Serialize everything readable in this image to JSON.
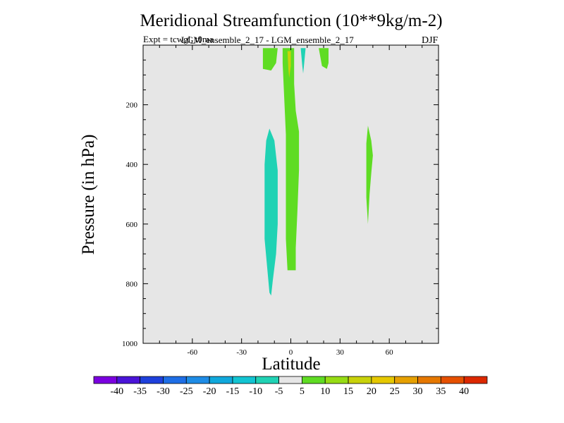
{
  "header": {
    "title": "Meridional Streamfunction (10**9kg/m-2)",
    "expt": "Expt = tcwgl_t0ma",
    "subtitle": "LGM_ensemble_2_17 - LGM_ensemble_2_17",
    "season": "DJF"
  },
  "colors": {
    "plot_background": "#e6e6e6",
    "neg_10_5": "#20d2b4",
    "pos_5_10": "#5fdc23",
    "pos_15_20": "#c8d20a"
  },
  "chart_data": {
    "type": "contour",
    "title": "Meridional Streamfunction (10**9kg/m-2)",
    "xlabel": "Latitude",
    "ylabel": "Pressure (in hPa)",
    "xlim": [
      -90,
      90
    ],
    "ylim": [
      1000,
      0
    ],
    "xticks": [
      -60,
      -30,
      0,
      30,
      60
    ],
    "yticks": [
      200,
      400,
      600,
      800,
      1000
    ],
    "colorbar": {
      "levels": [
        "-40",
        "-35",
        "-30",
        "-25",
        "-20",
        "-15",
        "-10",
        "-5",
        "5",
        "10",
        "15",
        "20",
        "25",
        "30",
        "35",
        "40"
      ],
      "colors": [
        "#7b00e0",
        "#4a14d8",
        "#1e40dc",
        "#1e6ee6",
        "#1e8ce6",
        "#10a8dc",
        "#12c4d2",
        "#20d2b4",
        "#e6e6e6",
        "#5fdc23",
        "#96dc14",
        "#c8d20a",
        "#e6c800",
        "#e6a000",
        "#e67800",
        "#e65000",
        "#dc2800"
      ]
    },
    "regions": [
      {
        "name": "negative-cell-15S",
        "level": "-10 to -5",
        "color": "#20d2b4",
        "points": [
          [
            -13,
            280
          ],
          [
            -10,
            320
          ],
          [
            -8,
            420
          ],
          [
            -8,
            600
          ],
          [
            -9,
            700
          ],
          [
            -11,
            790
          ],
          [
            -12,
            840
          ],
          [
            -13,
            830
          ],
          [
            -14,
            770
          ],
          [
            -16,
            650
          ],
          [
            -16,
            400
          ],
          [
            -15,
            320
          ]
        ]
      },
      {
        "name": "positive-column-equator",
        "level": "5 to 10",
        "color": "#5fdc23",
        "points": [
          [
            -5,
            10
          ],
          [
            2,
            10
          ],
          [
            2,
            130
          ],
          [
            3,
            220
          ],
          [
            5,
            290
          ],
          [
            5,
            420
          ],
          [
            4,
            560
          ],
          [
            3,
            680
          ],
          [
            3,
            755
          ],
          [
            -2,
            755
          ],
          [
            -3,
            650
          ],
          [
            -3,
            500
          ],
          [
            -3,
            300
          ],
          [
            -4,
            180
          ],
          [
            -5,
            60
          ]
        ]
      },
      {
        "name": "positive-core-equator",
        "level": "15 to 20",
        "color": "#c8d20a",
        "points": [
          [
            -2,
            20
          ],
          [
            0,
            20
          ],
          [
            0,
            70
          ],
          [
            -1,
            110
          ],
          [
            -1.5,
            80
          ]
        ]
      },
      {
        "name": "positive-top-15S",
        "level": "5 to 10",
        "color": "#5fdc23",
        "points": [
          [
            -17,
            10
          ],
          [
            -8,
            10
          ],
          [
            -9,
            60
          ],
          [
            -12,
            85
          ],
          [
            -17,
            80
          ]
        ]
      },
      {
        "name": "positive-top-20N",
        "level": "5 to 10",
        "color": "#5fdc23",
        "points": [
          [
            17,
            10
          ],
          [
            23,
            10
          ],
          [
            23,
            60
          ],
          [
            22,
            80
          ],
          [
            19,
            70
          ]
        ]
      },
      {
        "name": "negative-top-7N",
        "level": "-10 to -5",
        "color": "#20d2b4",
        "points": [
          [
            6,
            10
          ],
          [
            9,
            10
          ],
          [
            8,
            70
          ],
          [
            7.5,
            95
          ],
          [
            7,
            70
          ]
        ]
      },
      {
        "name": "positive-cell-48N",
        "level": "5 to 10",
        "color": "#5fdc23",
        "points": [
          [
            47,
            270
          ],
          [
            49,
            320
          ],
          [
            50,
            370
          ],
          [
            49,
            430
          ],
          [
            48,
            500
          ],
          [
            47,
            600
          ],
          [
            46,
            510
          ],
          [
            46,
            420
          ],
          [
            46,
            330
          ]
        ]
      }
    ]
  },
  "axes": {
    "xlabel": "Latitude",
    "ylabel": "Pressure (in hPa)"
  }
}
